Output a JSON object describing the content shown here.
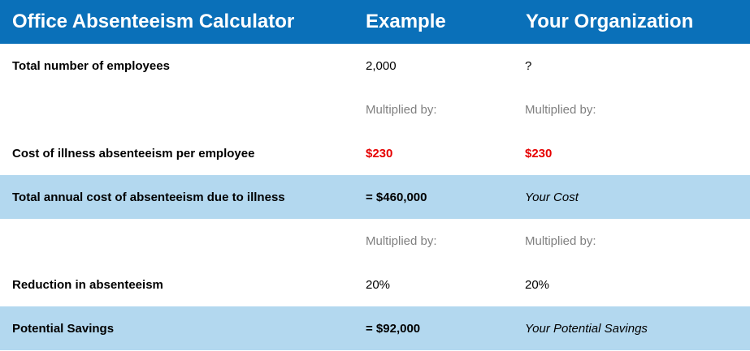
{
  "header": {
    "title": "Office Absenteeism Calculator",
    "example": "Example",
    "organization": "Your Organization"
  },
  "rows": [
    {
      "label": "Total number of employees",
      "example": "2,000",
      "organization": "?"
    },
    {
      "label": "",
      "example": "Multiplied by:",
      "organization": "Multiplied by:"
    },
    {
      "label": "Cost of illness absenteeism per employee",
      "example": "$230",
      "organization": "$230"
    },
    {
      "label": "Total annual cost of absenteeism due to illness",
      "example": "= $460,000",
      "organization": "Your Cost"
    },
    {
      "label": "",
      "example": "Multiplied by:",
      "organization": "Multiplied by:"
    },
    {
      "label": "Reduction in absenteeism",
      "example": "20%",
      "organization": "20%"
    },
    {
      "label": "Potential Savings",
      "example": "= $92,000",
      "organization": "Your Potential Savings"
    }
  ],
  "colors": {
    "header_background": "#0a70b9",
    "highlight_row": "#b3d8ef",
    "cost_value": "#e60000",
    "multiplier_text": "#808080"
  }
}
